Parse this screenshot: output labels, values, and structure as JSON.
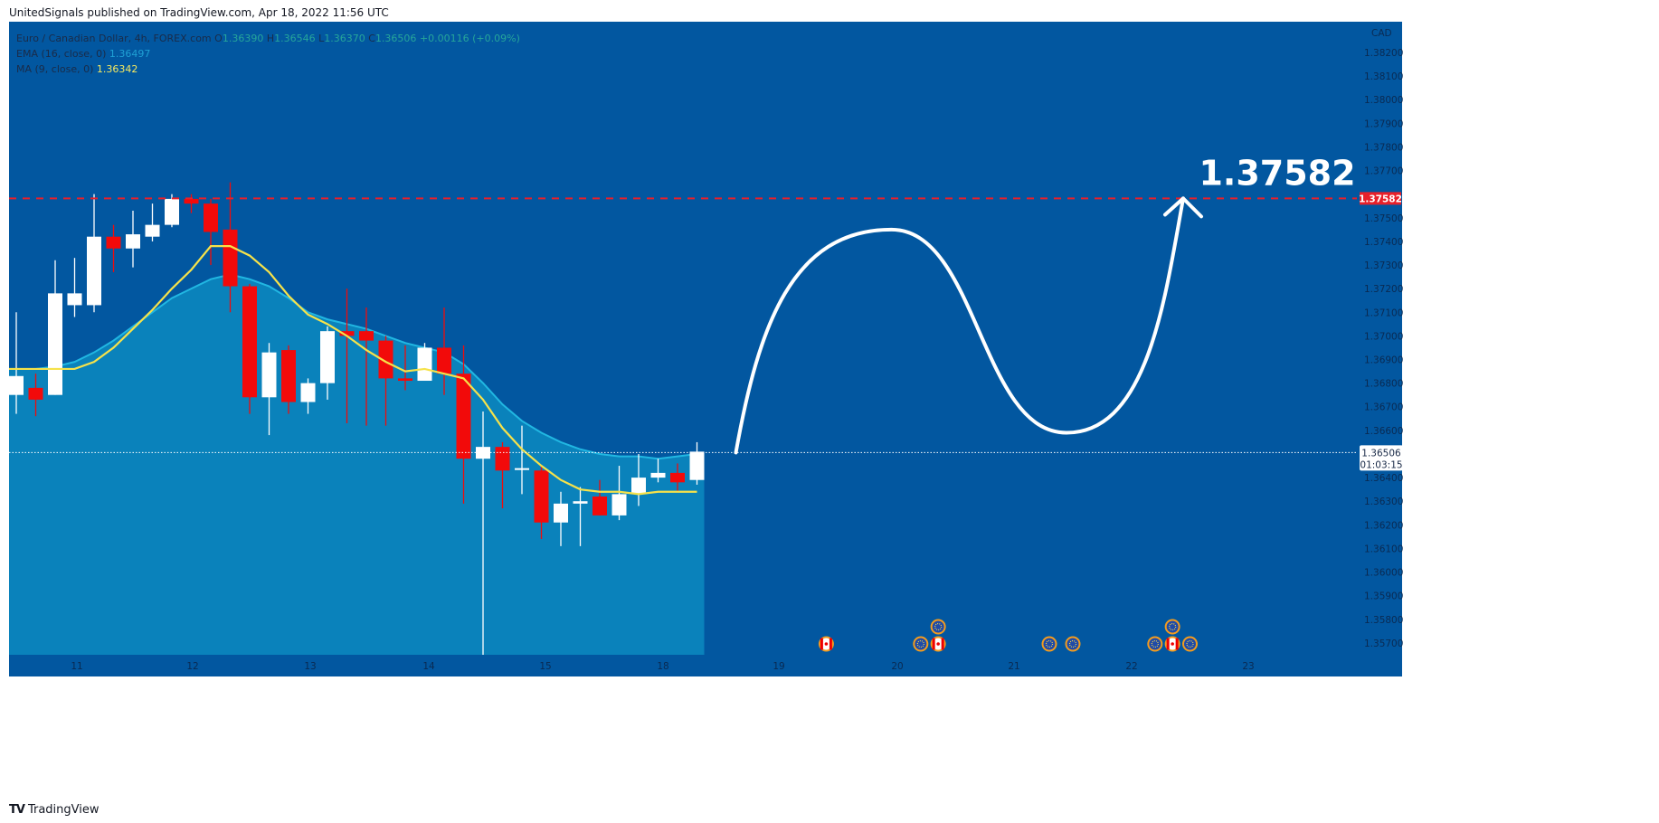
{
  "header": {
    "published": "UnitedSignals published on TradingView.com, Apr 18, 2022 11:56 UTC"
  },
  "legend": {
    "symbol": "Euro / Canadian Dollar, 4h, FOREX.com",
    "o_label": "O",
    "o_value": "1.36390",
    "h_label": "H",
    "h_value": "1.36546",
    "l_label": "L",
    "l_value": "1.36370",
    "c_label": "C",
    "c_value": "1.36506",
    "change": "+0.00116 (+0.09%)",
    "ema_label": "EMA (16, close, 0)",
    "ema_value": "1.36497",
    "ma_label": "MA (9, close, 0)",
    "ma_value": "1.36342"
  },
  "footer": {
    "brand": "TradingView"
  },
  "colors": {
    "background": "#0257a0",
    "up": "#ffffff",
    "down": "#f20a0a",
    "ema_fill": "#0c89bf",
    "ema_line": "#21b7e2",
    "ma_line": "#f6e24a",
    "target_line": "#e8202a",
    "arrow": "#ffffff",
    "event_ring": "#f39c1e"
  },
  "chart_data": {
    "type": "candlestick",
    "timeframe": "4h",
    "currency_label": "CAD",
    "ylim": [
      1.3565,
      1.3833
    ],
    "y_ticks": [
      "1.38200",
      "1.38100",
      "1.38000",
      "1.37900",
      "1.37800",
      "1.37700",
      "1.37500",
      "1.37400",
      "1.37300",
      "1.37200",
      "1.37100",
      "1.37000",
      "1.36900",
      "1.36800",
      "1.36700",
      "1.36600",
      "1.36400",
      "1.36300",
      "1.36200",
      "1.36100",
      "1.36000",
      "1.35900",
      "1.35800",
      "1.35700"
    ],
    "x_ticks": [
      "11",
      "12",
      "13",
      "14",
      "15",
      "18",
      "19",
      "20",
      "21",
      "22",
      "23"
    ],
    "candles": [
      [
        1.3675,
        1.3683,
        1.3667,
        1.371
      ],
      [
        1.3678,
        1.3673,
        1.3666,
        1.3684
      ],
      [
        1.3675,
        1.3718,
        1.3675,
        1.3732
      ],
      [
        1.3713,
        1.3718,
        1.3708,
        1.3733
      ],
      [
        1.3713,
        1.3742,
        1.371,
        1.376
      ],
      [
        1.3742,
        1.3737,
        1.3727,
        1.3747
      ],
      [
        1.3737,
        1.3743,
        1.3729,
        1.3753
      ],
      [
        1.3742,
        1.3747,
        1.374,
        1.3756
      ],
      [
        1.3747,
        1.3758,
        1.3746,
        1.376
      ],
      [
        1.3758,
        1.3756,
        1.3752,
        1.376
      ],
      [
        1.3756,
        1.3744,
        1.373,
        1.3758
      ],
      [
        1.3745,
        1.3721,
        1.371,
        1.3765
      ],
      [
        1.3721,
        1.3674,
        1.3667,
        1.3722
      ],
      [
        1.3674,
        1.3693,
        1.3658,
        1.3697
      ],
      [
        1.3694,
        1.3672,
        1.3667,
        1.3696
      ],
      [
        1.3672,
        1.368,
        1.3667,
        1.3682
      ],
      [
        1.368,
        1.3702,
        1.3673,
        1.3704
      ],
      [
        1.3702,
        1.37,
        1.3663,
        1.372
      ],
      [
        1.3702,
        1.3698,
        1.3662,
        1.3712
      ],
      [
        1.3698,
        1.3682,
        1.3662,
        1.37
      ],
      [
        1.3682,
        1.3681,
        1.3677,
        1.3696
      ],
      [
        1.3681,
        1.3695,
        1.3681,
        1.3697
      ],
      [
        1.3695,
        1.3684,
        1.3675,
        1.3712
      ],
      [
        1.3684,
        1.3648,
        1.3629,
        1.3696
      ],
      [
        1.3648,
        1.3653,
        1.3565,
        1.3668
      ],
      [
        1.3653,
        1.3643,
        1.3627,
        1.3655
      ],
      [
        1.3644,
        1.3644,
        1.3633,
        1.3662
      ],
      [
        1.3643,
        1.3621,
        1.3614,
        1.3645
      ],
      [
        1.3621,
        1.3629,
        1.3611,
        1.3634
      ],
      [
        1.3629,
        1.363,
        1.3611,
        1.3636
      ],
      [
        1.3632,
        1.3624,
        1.3624,
        1.3639
      ],
      [
        1.3624,
        1.3633,
        1.3622,
        1.3645
      ],
      [
        1.3633,
        1.364,
        1.3628,
        1.365
      ],
      [
        1.364,
        1.3642,
        1.3638,
        1.3648
      ],
      [
        1.3642,
        1.3638,
        1.3634,
        1.3646
      ],
      [
        1.3639,
        1.3651,
        1.3637,
        1.3655
      ]
    ],
    "ema_16": [
      1.3686,
      1.3686,
      1.3687,
      1.3689,
      1.3693,
      1.3698,
      1.3704,
      1.371,
      1.3716,
      1.372,
      1.3724,
      1.3726,
      1.3724,
      1.3721,
      1.3716,
      1.371,
      1.3707,
      1.3705,
      1.3703,
      1.37,
      1.3697,
      1.3695,
      1.3693,
      1.3688,
      1.368,
      1.3671,
      1.3664,
      1.3659,
      1.3655,
      1.3652,
      1.365,
      1.3649,
      1.3649,
      1.3648,
      1.3649,
      1.365
    ],
    "ma_9": [
      1.3686,
      1.3686,
      1.3686,
      1.3686,
      1.3689,
      1.3695,
      1.3703,
      1.3711,
      1.372,
      1.3728,
      1.3738,
      1.3738,
      1.3734,
      1.3727,
      1.3717,
      1.3709,
      1.3705,
      1.37,
      1.3694,
      1.3689,
      1.3685,
      1.3686,
      1.3684,
      1.3682,
      1.3673,
      1.3661,
      1.3652,
      1.3645,
      1.3639,
      1.3635,
      1.3634,
      1.3634,
      1.3633,
      1.3634,
      1.3634,
      1.3634
    ],
    "target": {
      "value": 1.37582,
      "label": "1.37582"
    },
    "last_price": {
      "value": 1.36506,
      "label": "1.36506",
      "countdown": "01:03:15"
    },
    "projection": [
      {
        "bars": 37,
        "price": 1.36506
      },
      {
        "bars": 45,
        "price": 1.3745
      },
      {
        "bars": 54,
        "price": 1.3659
      },
      {
        "bars": 60,
        "price": 1.37582
      }
    ],
    "events": [
      {
        "day": "19.4",
        "flag": "canada"
      },
      {
        "day": "20.2",
        "flag": "eu"
      },
      {
        "day": "20.35",
        "flag": "canada"
      },
      {
        "day": "20.35",
        "flag": "eu",
        "stack": 1
      },
      {
        "day": "21.3",
        "flag": "eu"
      },
      {
        "day": "21.5",
        "flag": "eu"
      },
      {
        "day": "22.2",
        "flag": "eu"
      },
      {
        "day": "22.35",
        "flag": "canada"
      },
      {
        "day": "22.35",
        "flag": "eu",
        "stack": 1
      },
      {
        "day": "22.5",
        "flag": "eu"
      }
    ]
  }
}
